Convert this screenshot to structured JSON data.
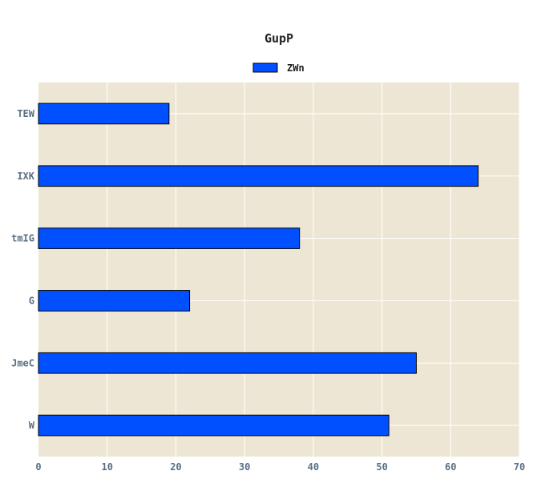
{
  "chart_data": {
    "type": "bar",
    "orientation": "horizontal",
    "title": "GupP",
    "xlabel": "",
    "ylabel": "",
    "categories": [
      "TEW",
      "IXK",
      "tmIG",
      "G",
      "JmeC",
      "W"
    ],
    "series": [
      {
        "name": "ZWn",
        "values": [
          19,
          64,
          38,
          22,
          55,
          51
        ]
      }
    ],
    "xlim": [
      0,
      70
    ],
    "xticks": [
      0,
      10,
      20,
      30,
      40,
      50,
      60,
      70
    ],
    "grid": true,
    "legend_position": "top-center",
    "colors": {
      "bar": "#0050ff",
      "bar_edge": "#000000",
      "plot_background": "#ede6d4",
      "grid": "#ffffff"
    }
  }
}
